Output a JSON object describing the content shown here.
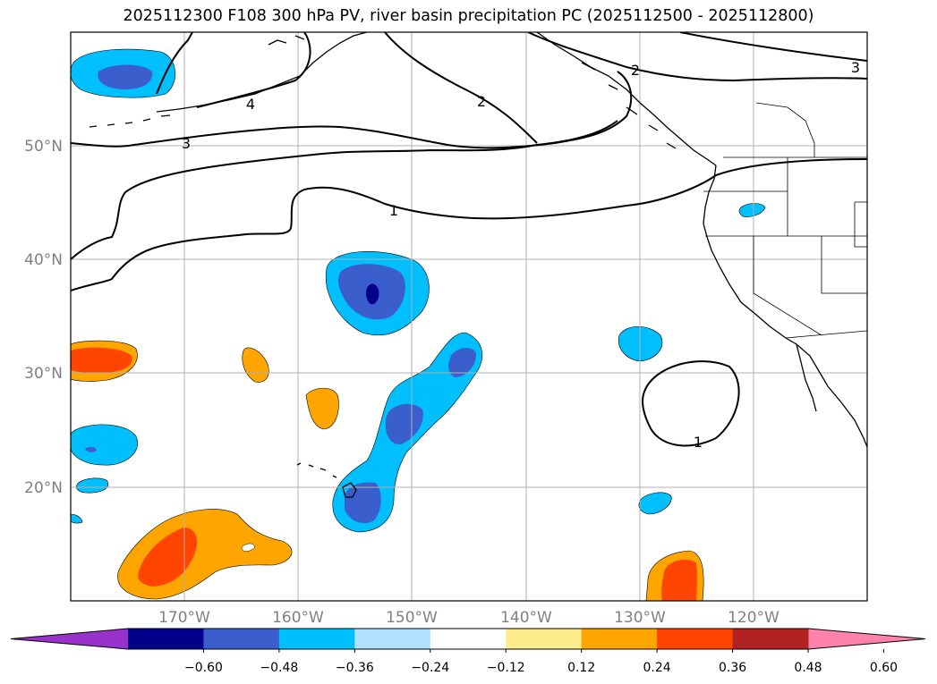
{
  "title": "2025112300 F108 300 hPa PV, river basin precipitation PC (2025112500 - 2025112800)",
  "map": {
    "projection": "PlateCarree",
    "lon_range": [
      -180,
      -110
    ],
    "lat_range": [
      10,
      60
    ],
    "lat_labels": [
      "50°N",
      "40°N",
      "30°N",
      "20°N"
    ],
    "lon_labels": [
      "170°W",
      "160°W",
      "150°W",
      "140°W",
      "130°W",
      "120°W"
    ],
    "grid": true
  },
  "pv_contour_labels": [
    "4",
    "3",
    "2",
    "1",
    "1",
    "2",
    "3"
  ],
  "colorbar": {
    "extend": "both",
    "colors": [
      "#9932CC",
      "#00008B",
      "#3A5FCD",
      "#00BFFF",
      "#B0E2FF",
      "#FFFFFF",
      "#FFEC8B",
      "#FFA500",
      "#FF4500",
      "#B22222",
      "#FF82AB"
    ],
    "ticks": [
      "−0.60",
      "−0.48",
      "−0.36",
      "−0.24",
      "−0.12",
      "0.12",
      "0.24",
      "0.36",
      "0.48",
      "0.60"
    ]
  }
}
